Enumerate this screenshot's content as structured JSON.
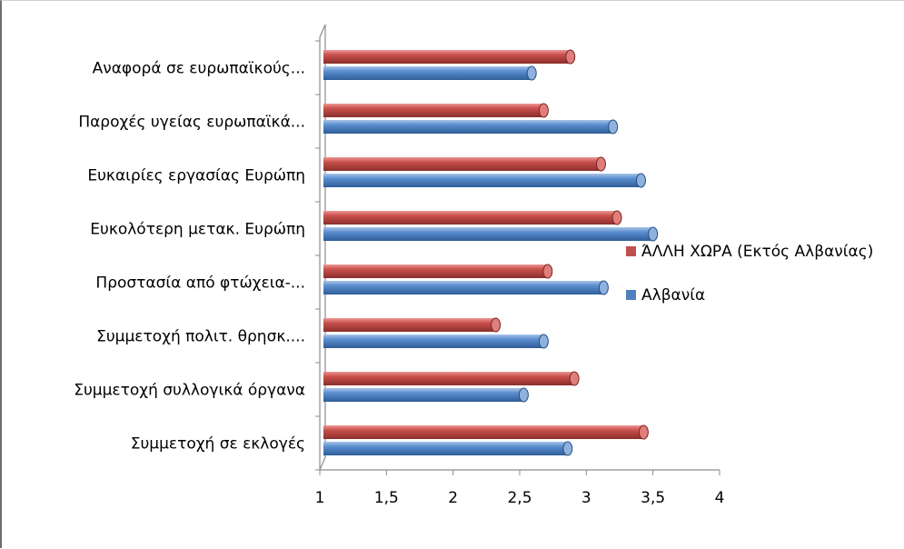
{
  "chart_data": {
    "type": "bar",
    "orientation": "horizontal",
    "style": "3d-cylinder",
    "categories": [
      "Συμμετοχή σε εκλογές",
      "Συμμετοχή συλλογικά όργανα",
      "Συμμετοχή πολιτ. θρησκ....",
      "Προστασία από φτώχεια-...",
      "Ευκολότερη μετακ. Ευρώπη",
      "Ευκαιρίες εργασίας Ευρώπη",
      "Παροχές υγείας ευρωπαϊκά...",
      "Αναφορά σε ευρωπαϊκούς..."
    ],
    "series": [
      {
        "name": "Αλβανία",
        "color": "#4f81bd",
        "values": [
          2.86,
          2.53,
          2.68,
          3.13,
          3.5,
          3.41,
          3.2,
          2.59
        ]
      },
      {
        "name": "ΆΛΛΗ ΧΩΡΑ (Εκτός Αλβανίας)",
        "color": "#c0504d",
        "values": [
          3.43,
          2.91,
          2.32,
          2.71,
          3.23,
          3.11,
          2.68,
          2.88
        ]
      }
    ],
    "xlim": [
      1,
      4
    ],
    "xticks": [
      "1",
      "1,5",
      "2",
      "2,5",
      "3",
      "3,5",
      "4"
    ],
    "xtick_values": [
      1,
      1.5,
      2,
      2.5,
      3,
      3.5,
      4
    ],
    "grid": false,
    "legend": "right"
  }
}
